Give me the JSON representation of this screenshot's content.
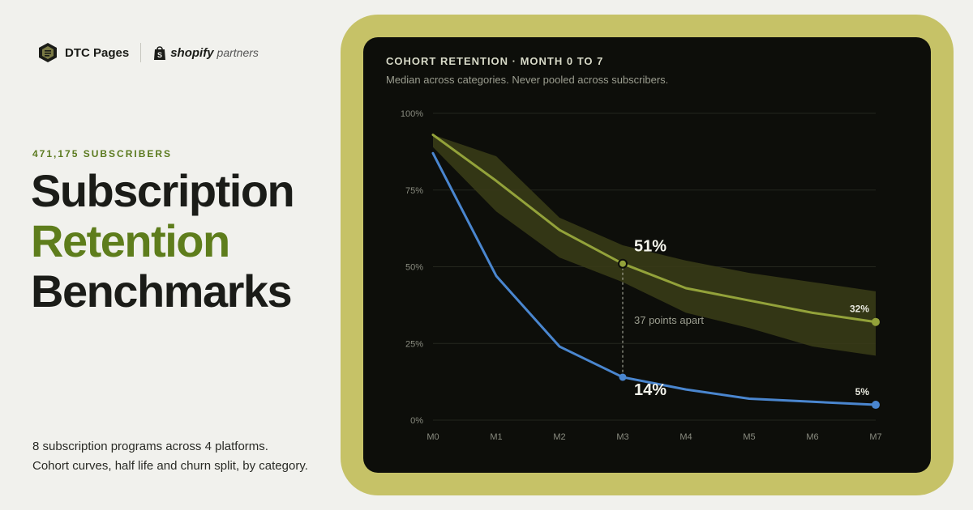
{
  "brand": {
    "name": "DTC Pages",
    "partner_strong": "shopify",
    "partner_light": "partners",
    "logo_icon": "dtc-pages-logo",
    "partner_icon": "shopify-bag-icon"
  },
  "hero": {
    "eyebrow": "471,175 SUBSCRIBERS",
    "title_line1": "Subscription",
    "title_line2": "Retention",
    "title_line3": "Benchmarks",
    "footer_line1": "8 subscription programs across 4 platforms.",
    "footer_line2": "Cohort curves, half life and churn split, by category."
  },
  "colors": {
    "background": "#f1f1ed",
    "accent": "#5e7d1c",
    "frame": "#c6c267",
    "card": "#0d0e0a",
    "median_line": "#93a23a",
    "band_fill": "#3b3d18",
    "pooled_line": "#4a86cf"
  },
  "chart_data": {
    "type": "line",
    "title": "COHORT RETENTION · MONTH 0 TO 7",
    "subtitle": "Median across categories. Never pooled across subscribers.",
    "categories": [
      "M0",
      "M1",
      "M2",
      "M3",
      "M4",
      "M5",
      "M6",
      "M7"
    ],
    "y_ticks": [
      "100%",
      "75%",
      "50%",
      "25%",
      "0%"
    ],
    "ylim": [
      0,
      100
    ],
    "grid": true,
    "series": [
      {
        "values": [
          93,
          78,
          62,
          51,
          43,
          39,
          35,
          32
        ],
        "color": "#93a23a"
      },
      {
        "values": [
          87,
          47,
          24,
          14,
          10,
          7,
          6,
          5
        ],
        "color": "#4a86cf"
      }
    ],
    "band": {
      "upper": [
        93,
        86,
        66,
        57,
        52,
        48,
        45,
        42
      ],
      "lower": [
        89,
        68,
        53,
        45,
        35,
        30,
        24,
        21
      ]
    },
    "annotations": {
      "median_m3": "51%",
      "pooled_m3": "14%",
      "gap": "37 points apart",
      "median_m7": "32%",
      "pooled_m7": "5%"
    }
  }
}
